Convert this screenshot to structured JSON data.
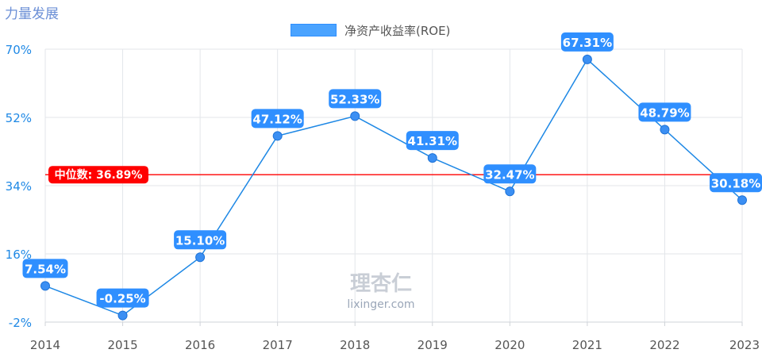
{
  "brand": "力量发展",
  "watermark": {
    "name": "理杏仁",
    "site": "lixinger.com"
  },
  "colors": {
    "line": "#1e88e5",
    "label_bg": "#2f8fff",
    "median": "#ff0000",
    "grid": "#e3e6ea"
  },
  "chart_data": {
    "type": "line",
    "title": "",
    "xlabel": "",
    "ylabel": "",
    "x": [
      "2014",
      "2015",
      "2016",
      "2017",
      "2018",
      "2019",
      "2020",
      "2021",
      "2022",
      "2023"
    ],
    "series": [
      {
        "name": "净资产收益率(ROE)",
        "values": [
          7.54,
          -0.25,
          15.1,
          47.12,
          52.33,
          41.31,
          32.47,
          67.31,
          48.79,
          30.18
        ],
        "labels": [
          "7.54%",
          "-0.25%",
          "15.10%",
          "47.12%",
          "52.33%",
          "41.31%",
          "32.47%",
          "67.31%",
          "48.79%",
          "30.18%"
        ]
      }
    ],
    "ylim": [
      -2,
      70
    ],
    "yticks": [
      -2,
      16,
      34,
      52,
      70
    ],
    "ytick_labels": [
      "-2%",
      "16%",
      "34%",
      "52%",
      "70%"
    ],
    "grid": true,
    "legend": "top-center",
    "median": {
      "value": 36.89,
      "label": "中位数: 36.89%"
    }
  }
}
